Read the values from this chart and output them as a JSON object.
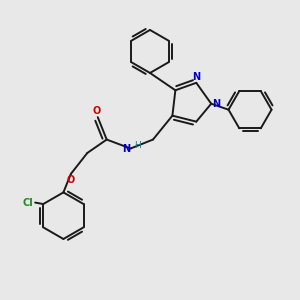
{
  "bg_color": "#e8e8e8",
  "bond_color": "#1a1a1a",
  "N_color": "#0000cc",
  "O_color": "#cc0000",
  "Cl_color": "#228B22",
  "H_color": "#008b8b",
  "linewidth": 1.4,
  "figsize": [
    3.0,
    3.0
  ],
  "dpi": 100,
  "xlim": [
    0,
    10
  ],
  "ylim": [
    0,
    10
  ]
}
